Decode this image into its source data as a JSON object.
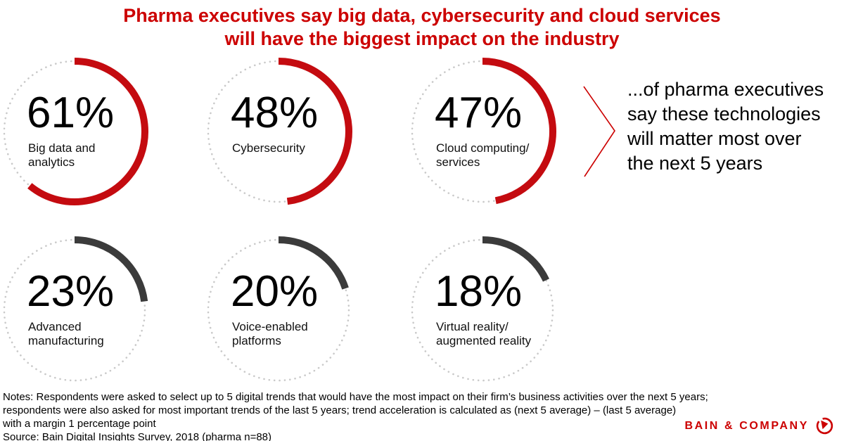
{
  "title": {
    "line1": "Pharma executives say big data, cybersecurity and cloud services",
    "line2": "will have the biggest impact on the industry"
  },
  "chart_data": {
    "type": "pie",
    "subtype": "donut-gauge-grid",
    "title": "Pharma executives say big data, cybersecurity and cloud services will have the biggest impact on the industry",
    "unit": "%",
    "arc_start": "top",
    "arc_direction": "clockwise",
    "series": [
      {
        "value": 61,
        "value_label": "61%",
        "label": "Big data and analytics",
        "label_lines": [
          "Big data and",
          "analytics"
        ],
        "color": "red"
      },
      {
        "value": 48,
        "value_label": "48%",
        "label": "Cybersecurity",
        "label_lines": [
          "Cybersecurity"
        ],
        "color": "red"
      },
      {
        "value": 47,
        "value_label": "47%",
        "label": "Cloud computing/services",
        "label_lines": [
          "Cloud computing/",
          "services"
        ],
        "color": "red"
      },
      {
        "value": 23,
        "value_label": "23%",
        "label": "Advanced manufacturing",
        "label_lines": [
          "Advanced",
          "manufacturing"
        ],
        "color": "dark"
      },
      {
        "value": 20,
        "value_label": "20%",
        "label": "Voice-enabled platforms",
        "label_lines": [
          "Voice-enabled",
          "platforms"
        ],
        "color": "dark"
      },
      {
        "value": 18,
        "value_label": "18%",
        "label": "Virtual reality/augmented reality",
        "label_lines": [
          "Virtual reality/",
          "augmented reality"
        ],
        "color": "dark"
      }
    ]
  },
  "annotation": {
    "lines": [
      "...of pharma executives",
      "say these technologies",
      "will matter most over",
      "the next 5 years"
    ]
  },
  "notes": {
    "lines": [
      "Notes: Respondents were asked to select up to 5 digital trends that would have the most impact on their firm’s business activities over the next 5 years;",
      "respondents were also asked for most important trends of the last 5 years; trend acceleration is calculated as (next 5 average) – (last 5 average)",
      "with a margin 1 percentage point",
      "Source: Bain Digital Insights Survey, 2018 (pharma n=88)"
    ]
  },
  "logo": {
    "text": "BAIN & COMPANY"
  },
  "colors": {
    "brand_red": "#cc0000",
    "arc_red": "#c40b10",
    "arc_dark": "#3b3b3b",
    "dot_gray": "#c9c9c9",
    "text_black": "#000000"
  }
}
